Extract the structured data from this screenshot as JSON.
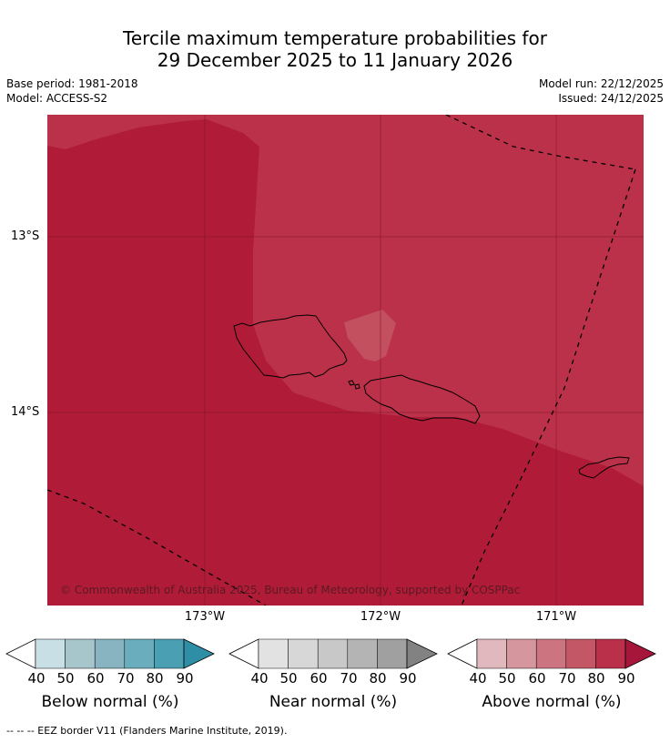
{
  "title": {
    "line1": "Tercile maximum temperature probabilities for",
    "line2": "29 December 2025 to 11 January 2026"
  },
  "meta": {
    "base_period": "Base period: 1981-2018",
    "model": "Model: ACCESS-S2",
    "model_run": "Model run: 22/12/2025",
    "issued": "Issued: 24/12/2025"
  },
  "map": {
    "lat_labels": [
      "13°S",
      "14°S"
    ],
    "lon_labels": [
      "173°W",
      "172°W",
      "171°W"
    ],
    "copyright": "© Commonwealth of Australia 2025, Bureau of Meteorology, supported by COSPPac",
    "colors": {
      "base": "#b01c38",
      "mid": "#bb3149",
      "light": "#c2505e"
    }
  },
  "colorbars": [
    {
      "label": "Below normal (%)",
      "ticks": [
        "40",
        "50",
        "60",
        "70",
        "80",
        "90"
      ],
      "colors": [
        "#ffffff",
        "#c7dfe5",
        "#a6c6cc",
        "#87b4c0",
        "#6aaebd",
        "#4a9fb3",
        "#2e8ea6"
      ]
    },
    {
      "label": "Near normal (%)",
      "ticks": [
        "40",
        "50",
        "60",
        "70",
        "80",
        "90"
      ],
      "colors": [
        "#ffffff",
        "#e2e2e2",
        "#d7d7d7",
        "#c8c8c8",
        "#b4b4b4",
        "#a0a0a0",
        "#828282"
      ]
    },
    {
      "label": "Above normal (%)",
      "ticks": [
        "40",
        "50",
        "60",
        "70",
        "80",
        "90"
      ],
      "colors": [
        "#ffffff",
        "#e0b8bd",
        "#d6969e",
        "#cc7580",
        "#c45766",
        "#ba2f4a",
        "#a5163a"
      ]
    }
  ],
  "footnote": "-- -- -- EEZ border V11 (Flanders Marine Institute, 2019)."
}
